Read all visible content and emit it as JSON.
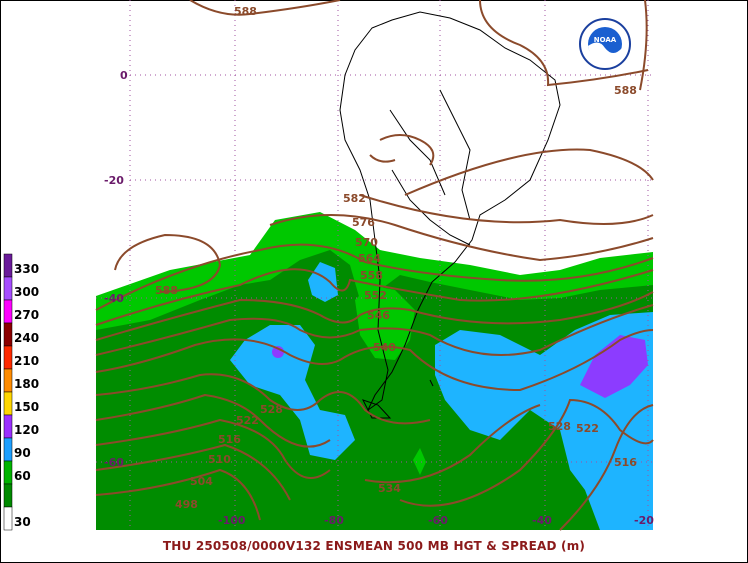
{
  "caption": "THU 250508/0000V132  ENSMEAN 500 MB HGT & SPREAD (m)",
  "logo": {
    "text": "NOAA",
    "icon": "noaa-logo-icon"
  },
  "legend": [
    {
      "label": "330",
      "color": "#6a1b9a"
    },
    {
      "label": "300",
      "color": "#a64dff"
    },
    {
      "label": "270",
      "color": "#ff00ff"
    },
    {
      "label": "240",
      "color": "#8b0000"
    },
    {
      "label": "210",
      "color": "#ff2a00"
    },
    {
      "label": "180",
      "color": "#ff8c00"
    },
    {
      "label": "150",
      "color": "#ffd700"
    },
    {
      "label": "120",
      "color": "#9b30ff"
    },
    {
      "label": "90",
      "color": "#1ea0ff"
    },
    {
      "label": "60",
      "color": "#00b400"
    },
    {
      "label": "",
      "color": "#008a00"
    },
    {
      "label": "30",
      "color": "#ffffff"
    }
  ],
  "lat_labels": [
    "0",
    "-20",
    "-40",
    "-60"
  ],
  "lon_labels": [
    "-100",
    "-80",
    "-60",
    "-40",
    "-20"
  ],
  "contour_labels": [
    "588",
    "588",
    "588",
    "582",
    "576",
    "570",
    "564",
    "558",
    "552",
    "546",
    "540",
    "528",
    "522",
    "516",
    "510",
    "504",
    "498",
    "528",
    "522",
    "516",
    "534"
  ],
  "colors": {
    "spread_lt_green": "#00c800",
    "spread_dk_green": "#008c00",
    "spread_blue": "#1eb4ff",
    "spread_purple": "#8c3cff",
    "contour": "#8b4a2b",
    "coast": "#000000"
  }
}
